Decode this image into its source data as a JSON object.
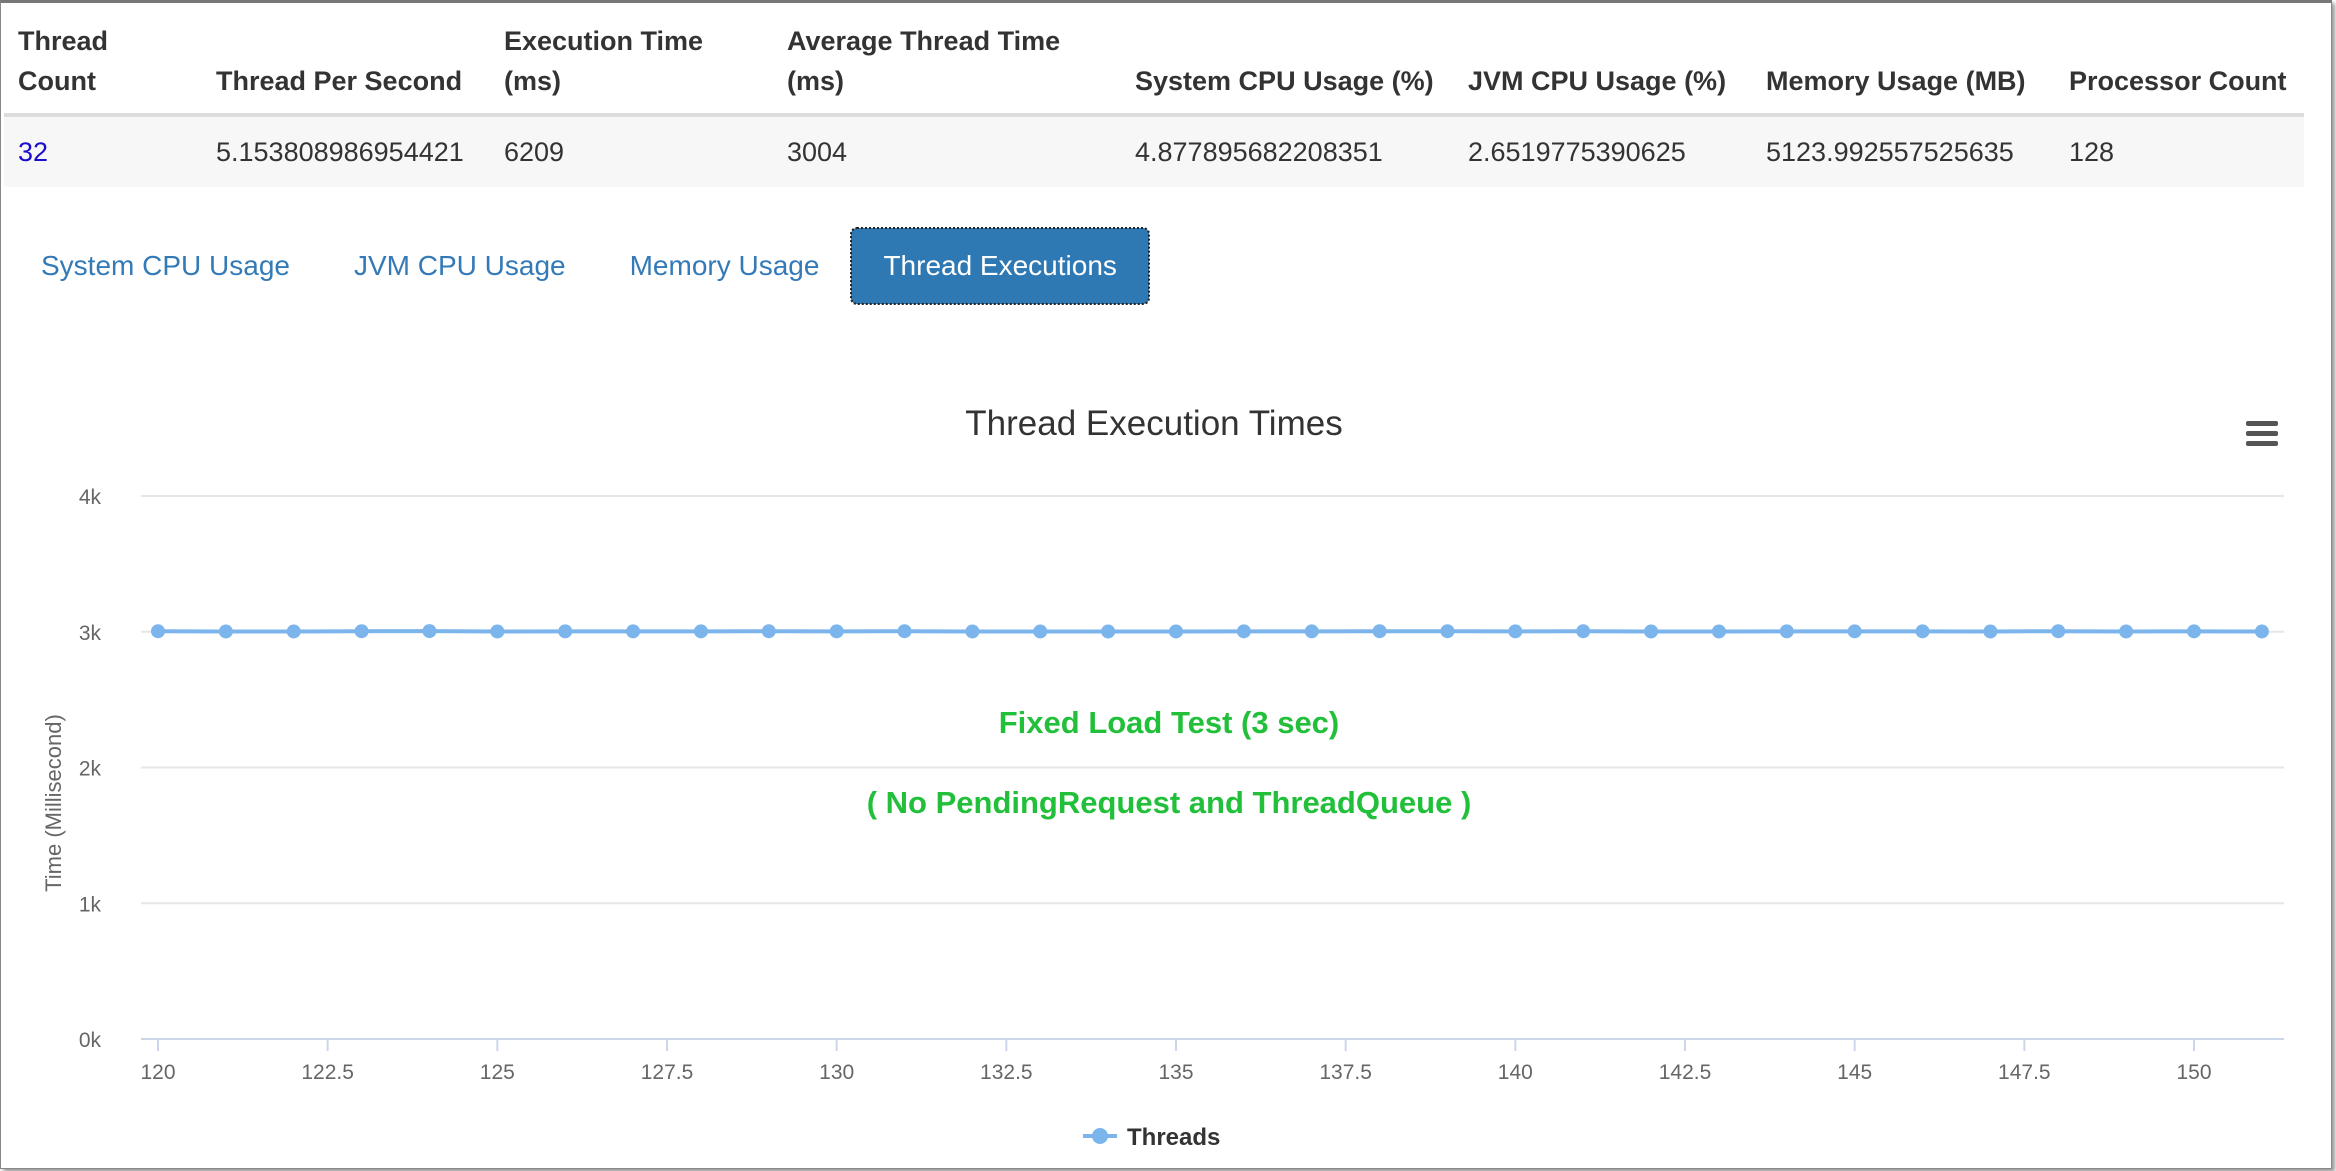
{
  "table": {
    "headers": [
      "Thread Count",
      "Thread Per Second",
      "Execution Time (ms)",
      "Average Thread Time (ms)",
      "System CPU Usage (%)",
      "JVM CPU Usage (%)",
      "Memory Usage (MB)",
      "Processor Count"
    ],
    "row": [
      "32",
      "5.153808986954421",
      "6209",
      "3004",
      "4.877895682208351",
      "2.6519775390625",
      "5123.992557525635",
      "128"
    ]
  },
  "tabs": [
    {
      "label": "System CPU Usage",
      "active": false
    },
    {
      "label": "JVM CPU Usage",
      "active": false
    },
    {
      "label": "Memory Usage",
      "active": false
    },
    {
      "label": "Thread Executions",
      "active": true
    }
  ],
  "chart_data": {
    "type": "line",
    "title": "Thread Execution Times",
    "ylabel": "Time (Millisecond)",
    "xlabel": "",
    "ylim": [
      0,
      4000
    ],
    "xlim": [
      120,
      151
    ],
    "yticks": [
      "0k",
      "1k",
      "2k",
      "3k",
      "4k"
    ],
    "xticks": [
      "120",
      "122.5",
      "125",
      "127.5",
      "130",
      "132.5",
      "135",
      "137.5",
      "140",
      "142.5",
      "145",
      "147.5",
      "150"
    ],
    "grid": true,
    "legend": "bottom",
    "series": [
      {
        "name": "Threads",
        "color": "#7cb5ec",
        "x": [
          120,
          121,
          122,
          123,
          124,
          125,
          126,
          127,
          128,
          129,
          130,
          131,
          132,
          133,
          134,
          135,
          136,
          137,
          138,
          139,
          140,
          141,
          142,
          143,
          144,
          145,
          146,
          147,
          148,
          149,
          150,
          151
        ],
        "values": [
          3004,
          3002,
          3002,
          3004,
          3005,
          3002,
          3003,
          3003,
          3003,
          3004,
          3003,
          3004,
          3002,
          3002,
          3002,
          3002,
          3003,
          3003,
          3004,
          3004,
          3003,
          3004,
          3002,
          3002,
          3003,
          3003,
          3003,
          3002,
          3004,
          3002,
          3003,
          3002
        ]
      }
    ],
    "annotations": [
      "Fixed Load Test (3 sec)",
      "( No PendingRequest and ThreadQueue )"
    ],
    "annotation_color": "#22c03a"
  },
  "menu_icon": "hamburger-icon"
}
